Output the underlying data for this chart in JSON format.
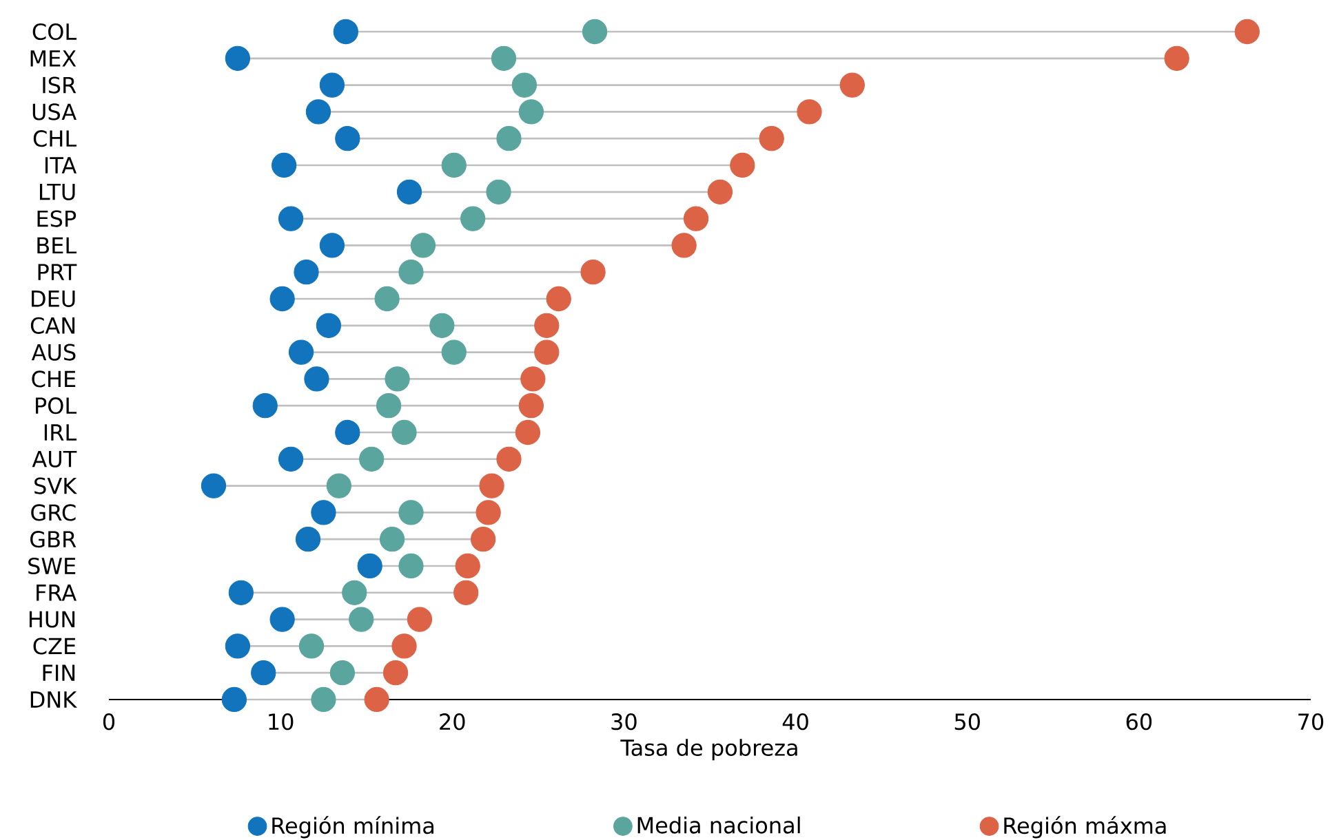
{
  "chart_data": {
    "type": "scatter",
    "orientation": "horizontal",
    "xlabel": "Tasa de pobreza",
    "categories": [
      "COL",
      "MEX",
      "ISR",
      "USA",
      "CHL",
      "ITA",
      "LTU",
      "ESP",
      "BEL",
      "PRT",
      "DEU",
      "CAN",
      "AUS",
      "CHE",
      "POL",
      "IRL",
      "AUT",
      "SVK",
      "GRC",
      "GBR",
      "SWE",
      "FRA",
      "HUN",
      "CZE",
      "FIN",
      "DNK"
    ],
    "xlim": [
      0,
      70
    ],
    "xticks": [
      0,
      10,
      20,
      30,
      40,
      50,
      60,
      70
    ],
    "marker": "circle",
    "legend": "bottom",
    "grid": false,
    "series": [
      {
        "name": "Región mínima",
        "color": "#1174bd",
        "values": [
          13.8,
          7.5,
          13.0,
          12.2,
          13.9,
          10.2,
          17.5,
          10.6,
          13.0,
          11.5,
          10.1,
          12.8,
          11.2,
          12.1,
          9.1,
          13.9,
          10.6,
          6.1,
          12.5,
          11.6,
          15.2,
          7.7,
          10.1,
          7.5,
          9.0,
          7.3
        ]
      },
      {
        "name": "Media nacional",
        "color": "#5ba59f",
        "values": [
          28.3,
          23.0,
          24.2,
          24.6,
          23.3,
          20.1,
          22.7,
          21.2,
          18.3,
          17.6,
          16.2,
          19.4,
          20.1,
          16.8,
          16.3,
          17.2,
          15.3,
          13.4,
          17.6,
          16.5,
          17.6,
          14.3,
          14.7,
          11.8,
          13.6,
          12.5
        ]
      },
      {
        "name": "Región máxma",
        "color": "#dc6346",
        "values": [
          66.3,
          62.2,
          43.3,
          40.8,
          38.6,
          36.9,
          35.6,
          34.2,
          33.5,
          28.2,
          26.2,
          25.5,
          25.5,
          24.7,
          24.6,
          24.4,
          23.3,
          22.3,
          22.1,
          21.8,
          20.9,
          20.8,
          18.1,
          17.2,
          16.7,
          15.6
        ]
      }
    ]
  }
}
